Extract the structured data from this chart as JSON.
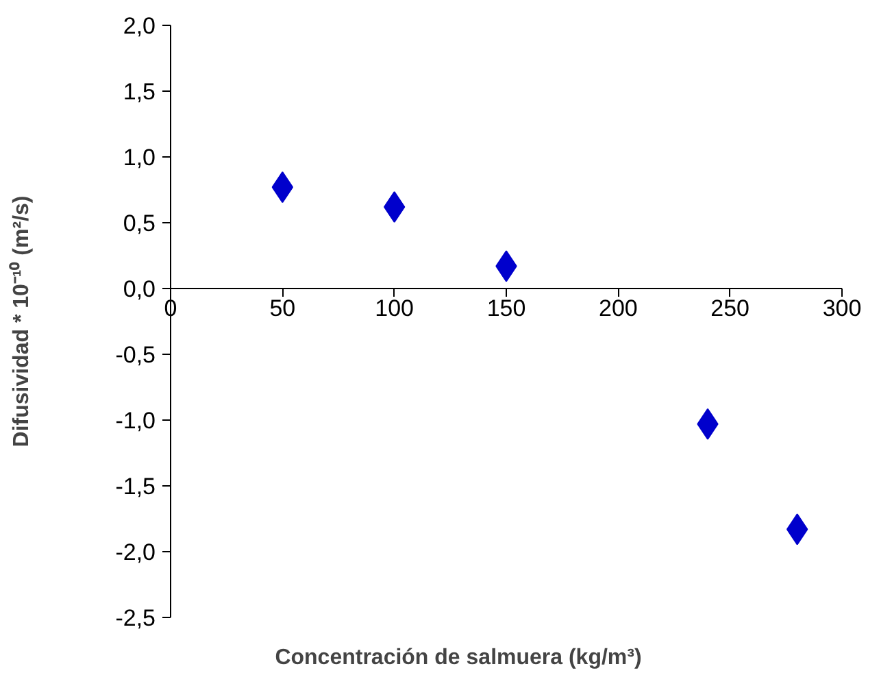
{
  "chart_data": {
    "type": "scatter",
    "xlabel": "Concentración de salmuera (kg/m³)",
    "ylabel": "Difusividad * 10⁻¹⁰ (m²/s)",
    "x": [
      50,
      100,
      150,
      240,
      280
    ],
    "series": [
      {
        "color": "#0000cc",
        "values": [
          0.77,
          0.62,
          0.17,
          -1.03,
          -1.83
        ]
      }
    ],
    "xlim": [
      0,
      300
    ],
    "xticks": [
      0,
      50,
      100,
      150,
      200,
      250,
      300
    ],
    "ylim": [
      -2.5,
      2.0
    ],
    "yticks": [
      {
        "value": -2.5,
        "label": "-2,5"
      },
      {
        "value": -2.0,
        "label": "-2,0"
      },
      {
        "value": -1.5,
        "label": "-1,5"
      },
      {
        "value": -1.0,
        "label": "-1,0"
      },
      {
        "value": -0.5,
        "label": "-0,5"
      },
      {
        "value": 0.0,
        "label": "0,0"
      },
      {
        "value": 0.5,
        "label": "0,5"
      },
      {
        "value": 1.0,
        "label": "1,0"
      },
      {
        "value": 1.5,
        "label": "1,5"
      },
      {
        "value": 2.0,
        "label": "2,0"
      }
    ],
    "marker": "diamond",
    "grid": false
  }
}
